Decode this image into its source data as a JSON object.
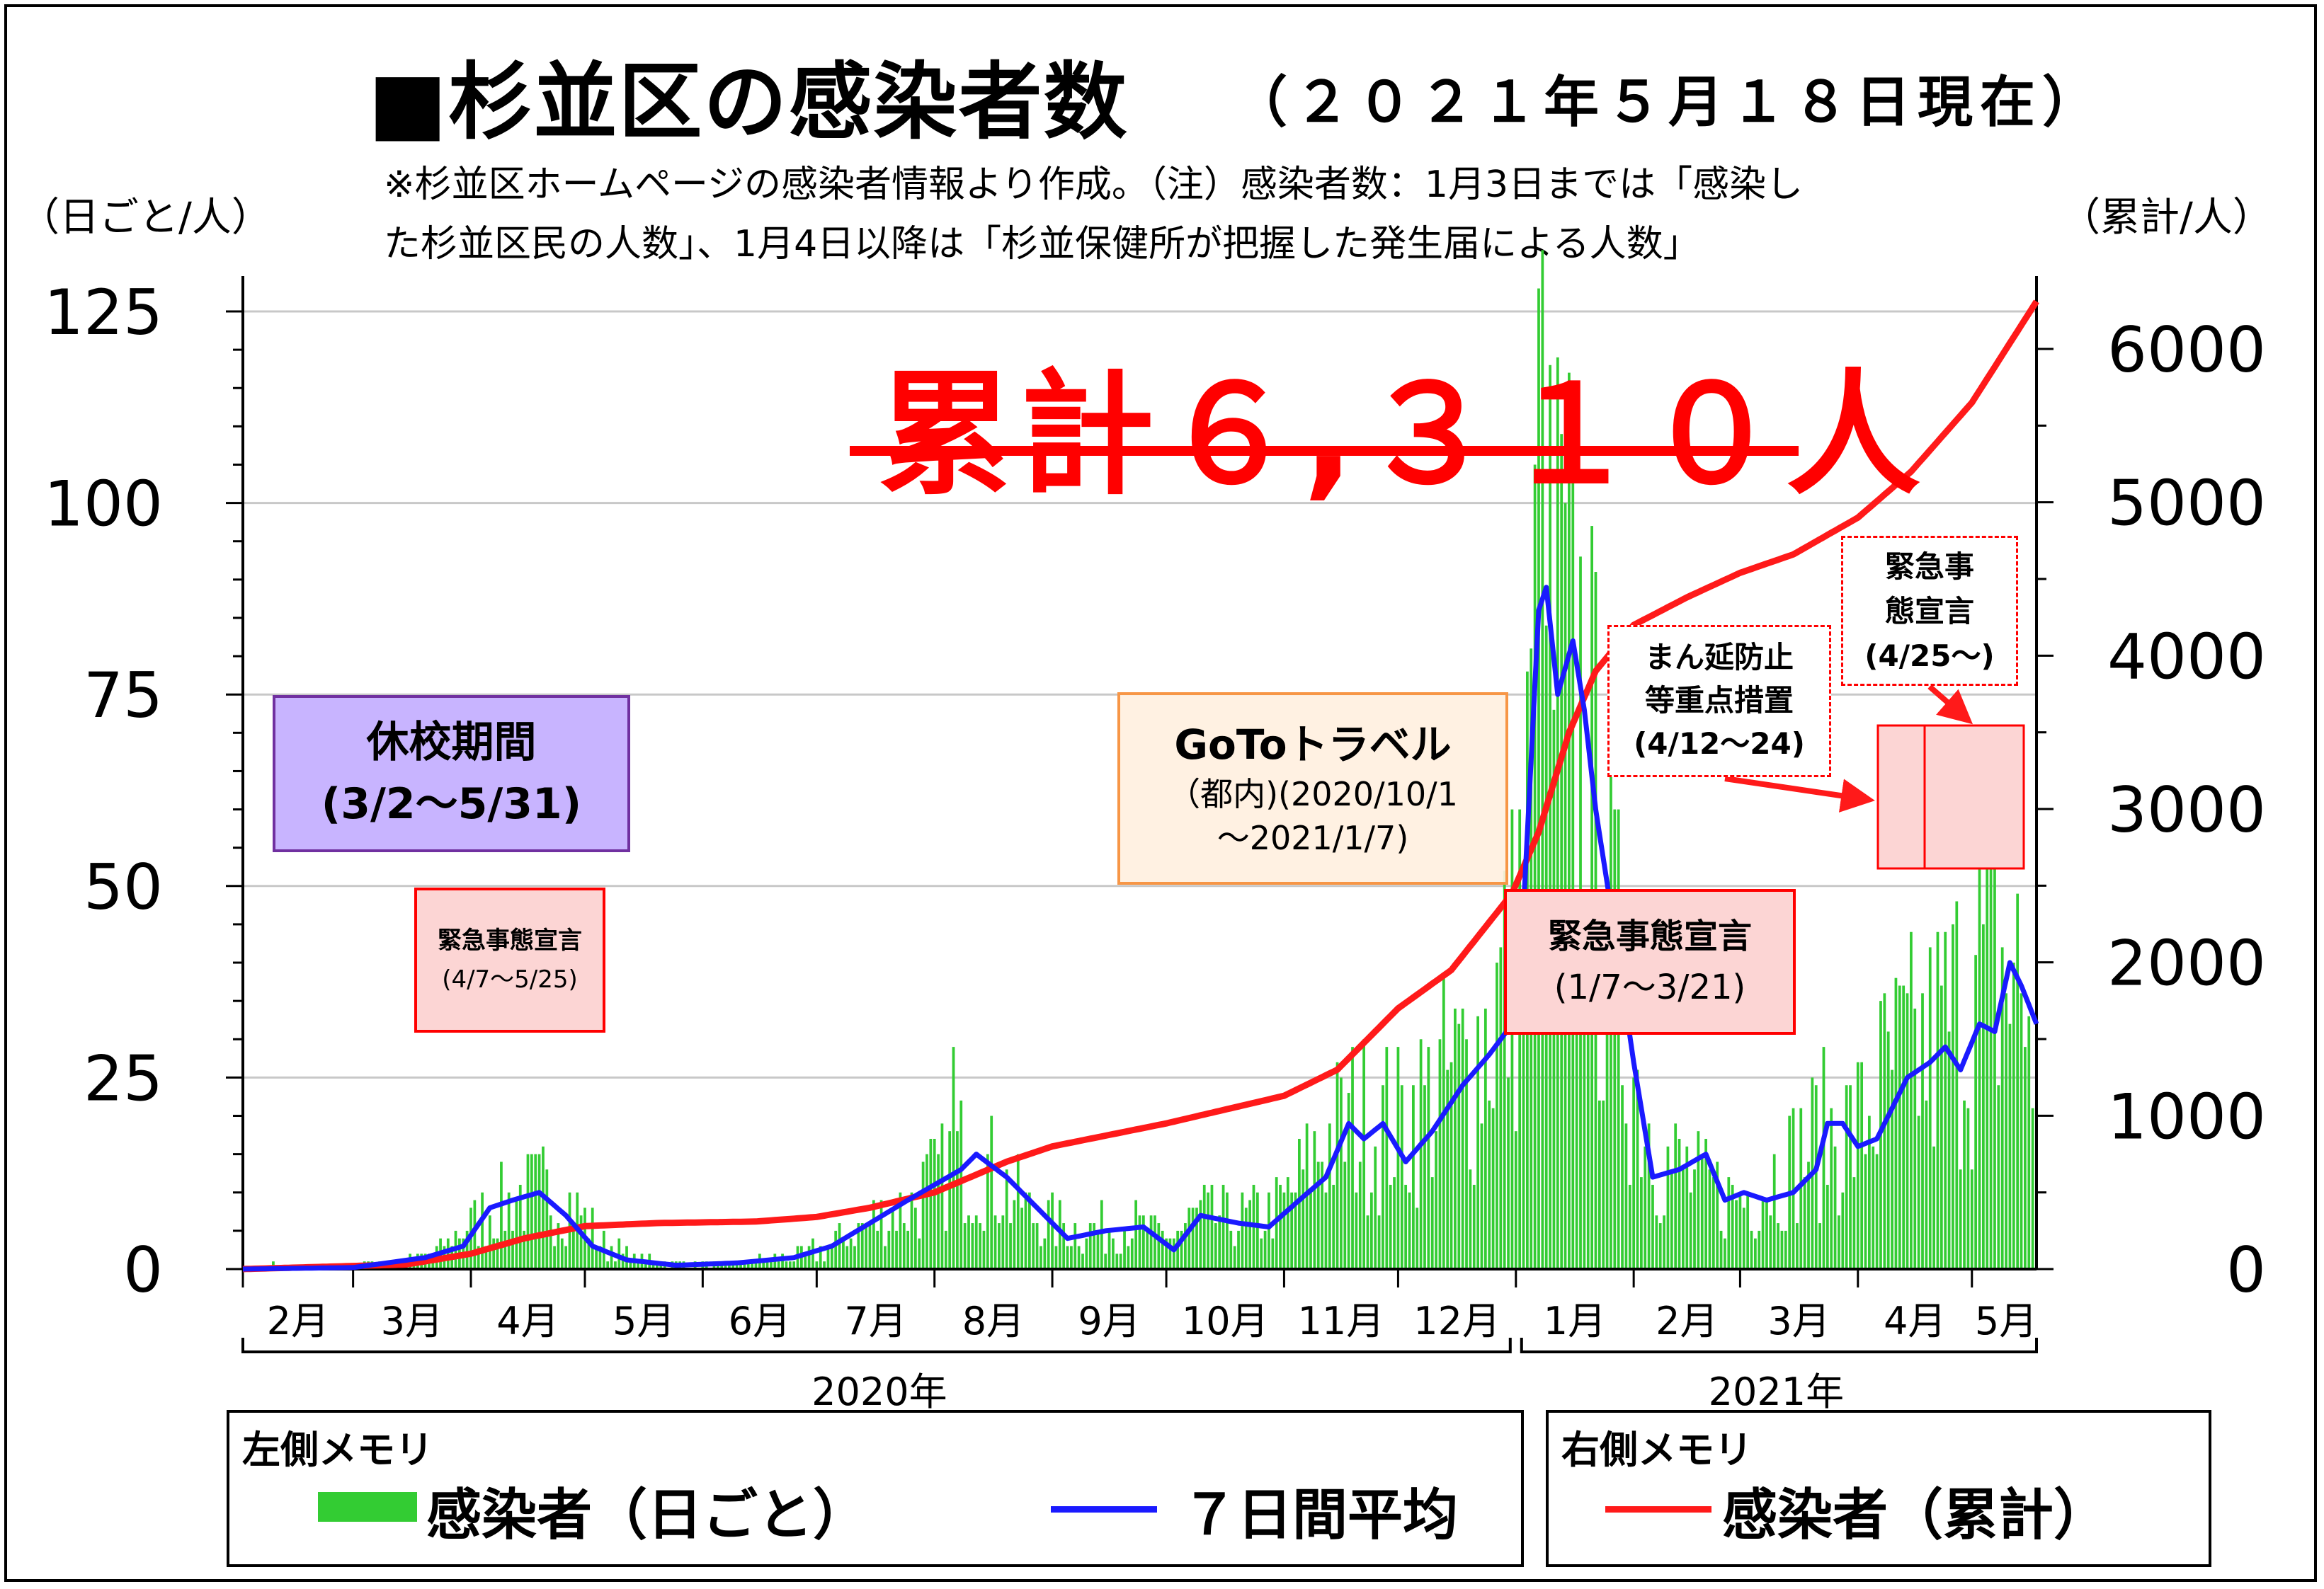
{
  "title": "■杉並区の感染者数",
  "title_date": "（２０２１年５月１８日現在）",
  "note_line1": "※杉並区ホームページの感染者情報より作成。（注）感染者数：1月3日までは「感染し",
  "note_line2": "た杉並区民の人数」、1月4日以降は「杉並保健所が把握した発生届による人数」",
  "left_unit": "（日ごと/人）",
  "right_unit": "（累計/人）",
  "cumulative_total": "累計６,３１０人",
  "annotations": {
    "kyuko_title": "休校期間",
    "kyuko_period": "(3/2～5/31)",
    "emergency1_title": "緊急事態宣言",
    "emergency1_period": "(4/7～5/25)",
    "goto_title": "GoToトラベル",
    "goto_line2": "（都内)(2020/10/1",
    "goto_line3": "～2021/1/7)",
    "emergency2_title": "緊急事態宣言",
    "emergency2_period": "(1/7～3/21)",
    "manen_line1": "まん延防止",
    "manen_line2": "等重点措置",
    "manen_period": "(4/12～24)",
    "emergency3_line1": "緊急事",
    "emergency3_line2": "態宣言",
    "emergency3_period": "(4/25～)"
  },
  "legend": {
    "left_title": "左側メモリ",
    "right_title": "右側メモリ",
    "daily": "感染者（日ごと）",
    "avg7": "７日間平均",
    "cumulative": "感染者（累計）"
  },
  "colors": {
    "daily_bar": "#33cc33",
    "avg_line": "#1a1aff",
    "cumulative_line": "#ff1a1a",
    "kyuko_fill": "#c8b4ff",
    "emergency_fill": "#fcd5d4",
    "goto_border": "#f79646"
  },
  "chart_data": {
    "type": "bar",
    "x_range": [
      "2020-02-01",
      "2021-05-18"
    ],
    "left_axis": {
      "min": 0,
      "max": 125,
      "ticks": [
        0,
        25,
        50,
        75,
        100,
        125
      ]
    },
    "right_axis": {
      "min": 0,
      "max": 6310,
      "ticks": [
        0,
        1000,
        2000,
        3000,
        4000,
        5000,
        6000
      ]
    },
    "grid": "horizontal",
    "month_labels": [
      "2月",
      "3月",
      "4月",
      "5月",
      "6月",
      "7月",
      "8月",
      "9月",
      "10月",
      "11月",
      "12月",
      "1月",
      "2月",
      "3月",
      "4月",
      "5月"
    ],
    "year_labels": [
      "2020年",
      "2021年"
    ],
    "series": [
      {
        "name": "感染者（日ごと）",
        "type": "bar",
        "axis": "left",
        "anchors": [
          [
            "2020-02-01",
            0
          ],
          [
            "2020-03-01",
            0.3
          ],
          [
            "2020-03-20",
            1.5
          ],
          [
            "2020-03-28",
            4
          ],
          [
            "2020-04-05",
            7
          ],
          [
            "2020-04-12",
            9
          ],
          [
            "2020-04-20",
            10
          ],
          [
            "2020-04-28",
            8
          ],
          [
            "2020-05-06",
            3
          ],
          [
            "2020-05-14",
            1.5
          ],
          [
            "2020-05-25",
            0.7
          ],
          [
            "2020-06-10",
            0.8
          ],
          [
            "2020-06-25",
            1.5
          ],
          [
            "2020-07-05",
            3
          ],
          [
            "2020-07-15",
            6
          ],
          [
            "2020-07-25",
            8
          ],
          [
            "2020-08-01",
            11
          ],
          [
            "2020-08-08",
            14
          ],
          [
            "2020-08-15",
            13
          ],
          [
            "2020-08-22",
            9
          ],
          [
            "2020-08-30",
            6
          ],
          [
            "2020-09-10",
            5
          ],
          [
            "2020-09-20",
            6
          ],
          [
            "2020-10-01",
            4
          ],
          [
            "2020-10-10",
            7
          ],
          [
            "2020-10-20",
            6
          ],
          [
            "2020-11-01",
            8
          ],
          [
            "2020-11-10",
            15
          ],
          [
            "2020-11-20",
            19
          ],
          [
            "2020-12-01",
            18
          ],
          [
            "2020-12-10",
            22
          ],
          [
            "2020-12-20",
            26
          ],
          [
            "2020-12-31",
            38
          ],
          [
            "2021-01-04",
            55
          ],
          [
            "2021-01-07",
            85
          ],
          [
            "2021-01-12",
            78
          ],
          [
            "2021-01-18",
            70
          ],
          [
            "2021-01-25",
            45
          ],
          [
            "2021-02-01",
            25
          ],
          [
            "2021-02-08",
            14
          ],
          [
            "2021-02-15",
            12
          ],
          [
            "2021-02-25",
            9
          ],
          [
            "2021-03-05",
            10
          ],
          [
            "2021-03-15",
            14
          ],
          [
            "2021-03-22",
            17
          ],
          [
            "2021-04-01",
            18
          ],
          [
            "2021-04-10",
            25
          ],
          [
            "2021-04-20",
            28
          ],
          [
            "2021-04-28",
            33
          ],
          [
            "2021-05-05",
            38
          ],
          [
            "2021-05-12",
            37
          ],
          [
            "2021-05-18",
            30
          ]
        ]
      },
      {
        "name": "７日間平均",
        "type": "line",
        "axis": "left",
        "anchors": [
          [
            "2020-02-01",
            0
          ],
          [
            "2020-03-01",
            0.2
          ],
          [
            "2020-03-20",
            1.5
          ],
          [
            "2020-03-30",
            3
          ],
          [
            "2020-04-06",
            8
          ],
          [
            "2020-04-12",
            9
          ],
          [
            "2020-04-19",
            10
          ],
          [
            "2020-04-26",
            7
          ],
          [
            "2020-05-03",
            3
          ],
          [
            "2020-05-12",
            1.2
          ],
          [
            "2020-05-25",
            0.5
          ],
          [
            "2020-06-10",
            0.8
          ],
          [
            "2020-06-25",
            1.5
          ],
          [
            "2020-07-05",
            3
          ],
          [
            "2020-07-15",
            6
          ],
          [
            "2020-07-25",
            9
          ],
          [
            "2020-08-01",
            11
          ],
          [
            "2020-08-08",
            13
          ],
          [
            "2020-08-12",
            15
          ],
          [
            "2020-08-20",
            12
          ],
          [
            "2020-08-28",
            8
          ],
          [
            "2020-09-05",
            4
          ],
          [
            "2020-09-15",
            5
          ],
          [
            "2020-09-25",
            5.5
          ],
          [
            "2020-10-03",
            2.5
          ],
          [
            "2020-10-10",
            7
          ],
          [
            "2020-10-20",
            6
          ],
          [
            "2020-10-28",
            5.5
          ],
          [
            "2020-11-05",
            9
          ],
          [
            "2020-11-12",
            12
          ],
          [
            "2020-11-18",
            19
          ],
          [
            "2020-11-22",
            17
          ],
          [
            "2020-11-27",
            19
          ],
          [
            "2020-12-03",
            14
          ],
          [
            "2020-12-10",
            18
          ],
          [
            "2020-12-18",
            24
          ],
          [
            "2020-12-25",
            28
          ],
          [
            "2020-12-31",
            32
          ],
          [
            "2021-01-03",
            47
          ],
          [
            "2021-01-07",
            86
          ],
          [
            "2021-01-09",
            89
          ],
          [
            "2021-01-12",
            75
          ],
          [
            "2021-01-16",
            82
          ],
          [
            "2021-01-19",
            73
          ],
          [
            "2021-01-22",
            60
          ],
          [
            "2021-01-27",
            44
          ],
          [
            "2021-02-01",
            27
          ],
          [
            "2021-02-06",
            12
          ],
          [
            "2021-02-13",
            13
          ],
          [
            "2021-02-20",
            15
          ],
          [
            "2021-02-25",
            9
          ],
          [
            "2021-03-02",
            10
          ],
          [
            "2021-03-08",
            9
          ],
          [
            "2021-03-15",
            10
          ],
          [
            "2021-03-21",
            13
          ],
          [
            "2021-03-24",
            19
          ],
          [
            "2021-03-28",
            19
          ],
          [
            "2021-04-01",
            16
          ],
          [
            "2021-04-06",
            17
          ],
          [
            "2021-04-14",
            25
          ],
          [
            "2021-04-20",
            27
          ],
          [
            "2021-04-24",
            29
          ],
          [
            "2021-04-28",
            26
          ],
          [
            "2021-05-03",
            32
          ],
          [
            "2021-05-07",
            31
          ],
          [
            "2021-05-11",
            40
          ],
          [
            "2021-05-14",
            37
          ],
          [
            "2021-05-18",
            32
          ]
        ]
      },
      {
        "name": "感染者（累計）",
        "type": "line",
        "axis": "right",
        "anchors": [
          [
            "2020-02-01",
            0
          ],
          [
            "2020-03-15",
            30
          ],
          [
            "2020-04-01",
            100
          ],
          [
            "2020-04-15",
            200
          ],
          [
            "2020-05-01",
            280
          ],
          [
            "2020-05-20",
            300
          ],
          [
            "2020-06-15",
            310
          ],
          [
            "2020-07-01",
            340
          ],
          [
            "2020-07-15",
            400
          ],
          [
            "2020-08-01",
            500
          ],
          [
            "2020-08-20",
            700
          ],
          [
            "2020-09-01",
            800
          ],
          [
            "2020-10-01",
            950
          ],
          [
            "2020-11-01",
            1130
          ],
          [
            "2020-11-15",
            1300
          ],
          [
            "2020-12-01",
            1700
          ],
          [
            "2020-12-15",
            1950
          ],
          [
            "2020-12-31",
            2450
          ],
          [
            "2021-01-07",
            2850
          ],
          [
            "2021-01-15",
            3500
          ],
          [
            "2021-01-22",
            3900
          ],
          [
            "2021-02-01",
            4200
          ],
          [
            "2021-02-15",
            4380
          ],
          [
            "2021-03-01",
            4540
          ],
          [
            "2021-03-15",
            4660
          ],
          [
            "2021-04-01",
            4900
          ],
          [
            "2021-04-15",
            5200
          ],
          [
            "2021-05-01",
            5650
          ],
          [
            "2021-05-18",
            6310
          ]
        ]
      }
    ]
  }
}
